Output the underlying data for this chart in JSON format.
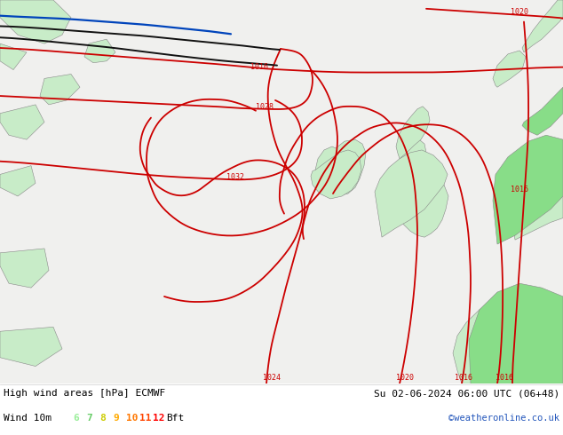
{
  "title_left": "High wind areas [hPa] ECMWF",
  "title_right": "Su 02-06-2024 06:00 UTC (06+48)",
  "subtitle_left": "Wind 10m",
  "subtitle_right": "©weatheronline.co.uk",
  "bft_nums": [
    "6",
    "7",
    "8",
    "9",
    "10",
    "11",
    "12"
  ],
  "bft_colors": [
    "#99ee99",
    "#66cc66",
    "#cccc00",
    "#ffaa00",
    "#ff7700",
    "#ff4400",
    "#ff0000"
  ],
  "bg_color": "#f0f0f0",
  "land_light": "#c8ecc8",
  "land_green": "#88dd88",
  "sea_color": "#f0f0ee",
  "isobar_color": "#cc0000",
  "blue_line_color": "#0044bb",
  "black_line_color": "#111111",
  "outline_color": "#888888",
  "bottom_bg": "#ffffff",
  "figsize": [
    6.34,
    4.9
  ],
  "dpi": 100
}
